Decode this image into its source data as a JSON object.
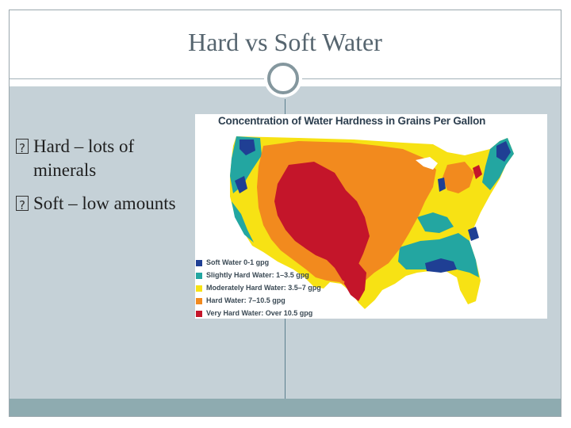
{
  "slide": {
    "title": "Hard vs Soft Water",
    "bullets": [
      {
        "text": "Hard – lots of minerals"
      },
      {
        "text": "Soft – low amounts"
      }
    ]
  },
  "map": {
    "title": "Concentration of Water Hardness in Grains Per Gallon",
    "legend": [
      {
        "label": "Soft Water 0-1 gpg",
        "color": "#1f3f94"
      },
      {
        "label": "Slightly Hard Water: 1–3.5 gpg",
        "color": "#23a6a1"
      },
      {
        "label": "Moderately Hard Water: 3.5–7 gpg",
        "color": "#f7e214"
      },
      {
        "label": "Hard Water: 7–10.5 gpg",
        "color": "#f28a1e"
      },
      {
        "label": "Very Hard Water: Over 10.5 gpg",
        "color": "#c4152a"
      }
    ]
  }
}
